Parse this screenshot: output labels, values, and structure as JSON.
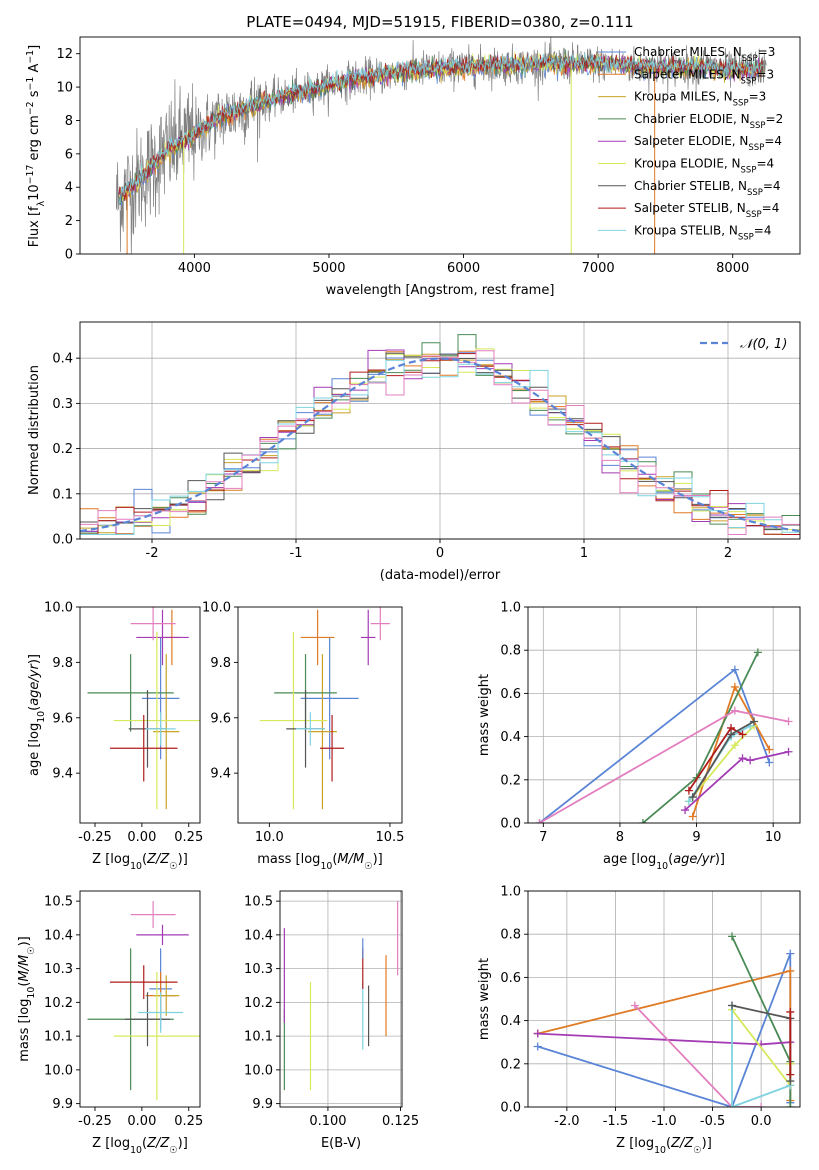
{
  "chart_data": [
    {
      "id": "spectrum",
      "type": "line",
      "title": "PLATE=0494, MJD=51915, FIBERID=0380, z=0.111",
      "xlabel": "wavelength [Angstrom, rest frame]",
      "ylabel": "Flux [f_λ 10^-17 erg cm^-2 s^-1 A^-1]",
      "xlim": [
        3150,
        8500
      ],
      "ylim": [
        0,
        13
      ],
      "xticks": [
        4000,
        5000,
        6000,
        7000,
        8000
      ],
      "yticks": [
        0,
        2,
        4,
        6,
        8,
        10,
        12
      ],
      "grid": false,
      "legend_position": "top-right",
      "continuum": [
        [
          3420,
          3.2
        ],
        [
          3600,
          4.5
        ],
        [
          3800,
          6.2
        ],
        [
          4000,
          7.2
        ],
        [
          4200,
          8.2
        ],
        [
          4400,
          8.8
        ],
        [
          4600,
          9.3
        ],
        [
          4800,
          9.7
        ],
        [
          5000,
          10.1
        ],
        [
          5200,
          10.5
        ],
        [
          5400,
          10.7
        ],
        [
          5600,
          11.0
        ],
        [
          5800,
          11.1
        ],
        [
          6000,
          11.2
        ],
        [
          6200,
          11.3
        ],
        [
          6400,
          11.3
        ],
        [
          6600,
          11.4
        ],
        [
          6800,
          11.4
        ],
        [
          7000,
          11.4
        ],
        [
          7200,
          11.3
        ],
        [
          7400,
          11.2
        ],
        [
          7600,
          11.2
        ],
        [
          7800,
          11.2
        ],
        [
          8000,
          11.0
        ],
        [
          8250,
          11.1
        ]
      ],
      "series": [
        {
          "name": "Chabrier MILES, N_SSP=3",
          "color": "#5a85d6"
        },
        {
          "name": "Salpeter MILES, N_SSP=3",
          "color": "#e07a24"
        },
        {
          "name": "Kroupa MILES, N_SSP=3",
          "color": "#c9a227"
        },
        {
          "name": "Chabrier ELODIE, N_SSP=2",
          "color": "#4a8a55"
        },
        {
          "name": "Salpeter ELODIE, N_SSP=4",
          "color": "#a33bb5"
        },
        {
          "name": "Kroupa ELODIE, N_SSP=4",
          "color": "#d7e85a"
        },
        {
          "name": "Chabrier STELIB, N_SSP=4",
          "color": "#555555"
        },
        {
          "name": "Salpeter STELIB, N_SSP=4",
          "color": "#b01c1c"
        },
        {
          "name": "Kroupa STELIB, N_SSP=4",
          "color": "#7fd3e0"
        }
      ]
    },
    {
      "id": "residuals",
      "type": "line",
      "xlabel": "(data-model)/error",
      "ylabel": "Normed distribution",
      "xlim": [
        -2.5,
        2.5
      ],
      "ylim": [
        0,
        0.48
      ],
      "xticks": [
        -2,
        -1,
        0,
        1,
        2
      ],
      "yticks": [
        0.0,
        0.1,
        0.2,
        0.3,
        0.4
      ],
      "grid": true,
      "legend": "N(0,1)",
      "legend_position": "top-right",
      "gaussian": {
        "mean": 0,
        "sigma": 1,
        "color": "#5a85d6"
      },
      "histogram_bins": 40
    },
    {
      "id": "age-vs-Z",
      "type": "scatter",
      "xlabel": "Z [log10(Z/Z☉)]",
      "ylabel": "age [log10(age/yr)]",
      "xlim": [
        -0.33,
        0.31
      ],
      "ylim": [
        9.22,
        10.0
      ],
      "xticks": [
        -0.25,
        0.0,
        0.25
      ],
      "yticks": [
        9.4,
        9.6,
        9.8,
        10.0
      ],
      "grid": false,
      "points": [
        {
          "c": "#5a85d6",
          "x": 0.1,
          "xerr": 0.1,
          "y": 9.67,
          "yerr": 0.22
        },
        {
          "c": "#e07a24",
          "x": 0.16,
          "xerr": 0.04,
          "y": 9.89,
          "yerr": 0.1
        },
        {
          "c": "#c9a227",
          "x": 0.13,
          "xerr": 0.07,
          "y": 9.55,
          "yerr": 0.28
        },
        {
          "c": "#4a8a55",
          "x": -0.06,
          "xerr": 0.23,
          "y": 9.69,
          "yerr": 0.14
        },
        {
          "c": "#a33bb5",
          "x": 0.11,
          "xerr": 0.14,
          "y": 9.89,
          "yerr": 0.1
        },
        {
          "c": "#d7e85a",
          "x": 0.08,
          "xerr": 0.23,
          "y": 9.59,
          "yerr": 0.32
        },
        {
          "c": "#555555",
          "x": 0.03,
          "xerr": 0.1,
          "y": 9.56,
          "yerr": 0.14
        },
        {
          "c": "#b01c1c",
          "x": 0.01,
          "xerr": 0.18,
          "y": 9.49,
          "yerr": 0.12
        },
        {
          "c": "#e27fbf",
          "x": 0.06,
          "xerr": 0.12,
          "y": 9.94,
          "yerr": 0.06
        },
        {
          "c": "#7fd3e0",
          "x": 0.1,
          "xerr": 0.08,
          "y": 9.56,
          "yerr": 0.06
        }
      ]
    },
    {
      "id": "age-vs-mass",
      "type": "scatter",
      "xlabel": "mass [log10(M/M☉)]",
      "ylabel": "",
      "xlim": [
        9.87,
        10.55
      ],
      "ylim": [
        9.22,
        10.0
      ],
      "xticks": [
        10.0,
        10.5
      ],
      "yticks": [
        9.4,
        9.6,
        9.8,
        10.0
      ],
      "grid": false,
      "points": [
        {
          "c": "#5a85d6",
          "x": 10.25,
          "xerr": 0.12,
          "y": 9.67,
          "yerr": 0.22
        },
        {
          "c": "#e07a24",
          "x": 10.2,
          "xerr": 0.07,
          "y": 9.89,
          "yerr": 0.1
        },
        {
          "c": "#c9a227",
          "x": 10.22,
          "xerr": 0.06,
          "y": 9.55,
          "yerr": 0.28
        },
        {
          "c": "#4a8a55",
          "x": 10.15,
          "xerr": 0.13,
          "y": 9.69,
          "yerr": 0.14
        },
        {
          "c": "#a33bb5",
          "x": 10.41,
          "xerr": 0.03,
          "y": 9.89,
          "yerr": 0.1
        },
        {
          "c": "#d7e85a",
          "x": 10.1,
          "xerr": 0.14,
          "y": 9.59,
          "yerr": 0.32
        },
        {
          "c": "#555555",
          "x": 10.15,
          "xerr": 0.08,
          "y": 9.56,
          "yerr": 0.14
        },
        {
          "c": "#b01c1c",
          "x": 10.26,
          "xerr": 0.05,
          "y": 9.49,
          "yerr": 0.12
        },
        {
          "c": "#e27fbf",
          "x": 10.46,
          "xerr": 0.04,
          "y": 9.94,
          "yerr": 0.06
        },
        {
          "c": "#7fd3e0",
          "x": 10.17,
          "xerr": 0.06,
          "y": 9.56,
          "yerr": 0.06
        }
      ]
    },
    {
      "id": "weight-vs-age",
      "type": "line",
      "xlabel": "age [log10(age/yr)]",
      "ylabel": "mass weight",
      "xlim": [
        6.8,
        10.35
      ],
      "ylim": [
        0,
        1.0
      ],
      "xticks": [
        7,
        8,
        9,
        10
      ],
      "yticks": [
        0.0,
        0.2,
        0.4,
        0.6,
        0.8,
        1.0
      ],
      "grid": true,
      "series": [
        {
          "c": "#5a85d6",
          "x": [
            6.95,
            9.5,
            9.95
          ],
          "y": [
            0.0,
            0.71,
            0.28
          ]
        },
        {
          "c": "#e07a24",
          "x": [
            8.95,
            9.5,
            9.95
          ],
          "y": [
            0.03,
            0.63,
            0.34
          ]
        },
        {
          "c": "#4a8a55",
          "x": [
            8.3,
            9.0,
            9.8
          ],
          "y": [
            0.0,
            0.21,
            0.79
          ]
        },
        {
          "c": "#a33bb5",
          "x": [
            8.85,
            9.6,
            9.7,
            10.2
          ],
          "y": [
            0.06,
            0.3,
            0.29,
            0.33
          ]
        },
        {
          "c": "#e27fbf",
          "x": [
            6.95,
            9.5,
            10.2
          ],
          "y": [
            0.0,
            0.52,
            0.47
          ]
        },
        {
          "c": "#d7e85a",
          "x": [
            8.9,
            9.5,
            9.75
          ],
          "y": [
            0.1,
            0.36,
            0.45
          ]
        },
        {
          "c": "#7fd3e0",
          "x": [
            8.9,
            9.45,
            9.7
          ],
          "y": [
            0.1,
            0.4,
            0.45
          ]
        },
        {
          "c": "#b01c1c",
          "x": [
            8.9,
            9.45,
            9.6
          ],
          "y": [
            0.15,
            0.44,
            0.41
          ]
        },
        {
          "c": "#555555",
          "x": [
            8.95,
            9.45,
            9.75
          ],
          "y": [
            0.12,
            0.41,
            0.47
          ]
        }
      ]
    },
    {
      "id": "mass-vs-Z",
      "type": "scatter",
      "xlabel": "Z [log10(Z/Z☉)]",
      "ylabel": "mass [log10(M/M☉)]",
      "xlim": [
        -0.33,
        0.31
      ],
      "ylim": [
        9.89,
        10.53
      ],
      "xticks": [
        -0.25,
        0.0,
        0.25
      ],
      "yticks": [
        9.9,
        10.0,
        10.1,
        10.2,
        10.3,
        10.4,
        10.5
      ],
      "grid": false,
      "points": [
        {
          "c": "#5a85d6",
          "x": 0.1,
          "xerr": 0.06,
          "y": 10.24,
          "yerr": 0.12
        },
        {
          "c": "#e07a24",
          "x": 0.1,
          "xerr": 0.08,
          "y": 10.22,
          "yerr": 0.07
        },
        {
          "c": "#c9a227",
          "x": 0.13,
          "xerr": 0.07,
          "y": 10.22,
          "yerr": 0.06
        },
        {
          "c": "#4a8a55",
          "x": -0.06,
          "xerr": 0.23,
          "y": 10.15,
          "yerr": 0.21
        },
        {
          "c": "#a33bb5",
          "x": 0.11,
          "xerr": 0.14,
          "y": 10.4,
          "yerr": 0.03
        },
        {
          "c": "#d7e85a",
          "x": 0.08,
          "xerr": 0.23,
          "y": 10.1,
          "yerr": 0.19
        },
        {
          "c": "#555555",
          "x": 0.03,
          "xerr": 0.12,
          "y": 10.15,
          "yerr": 0.08
        },
        {
          "c": "#b01c1c",
          "x": 0.01,
          "xerr": 0.18,
          "y": 10.26,
          "yerr": 0.05
        },
        {
          "c": "#e27fbf",
          "x": 0.06,
          "xerr": 0.12,
          "y": 10.46,
          "yerr": 0.04
        },
        {
          "c": "#7fd3e0",
          "x": 0.1,
          "xerr": 0.12,
          "y": 10.17,
          "yerr": 0.06
        }
      ]
    },
    {
      "id": "mass-vs-EBV",
      "type": "scatter",
      "xlabel": "E(B-V)",
      "ylabel": "",
      "xlim": [
        0.0835,
        0.1255
      ],
      "ylim": [
        9.89,
        10.53
      ],
      "xticks": [
        0.1,
        0.125
      ],
      "yticks": [
        9.9,
        10.0,
        10.1,
        10.2,
        10.3,
        10.4,
        10.5
      ],
      "grid": true,
      "points": [
        {
          "c": "#4a8a55",
          "x": 0.085,
          "y": 10.06,
          "yerr": 0.12
        },
        {
          "c": "#a33bb5",
          "x": 0.085,
          "y": 10.28,
          "yerr": 0.14
        },
        {
          "c": "#d7e85a",
          "x": 0.094,
          "y": 10.1,
          "yerr": 0.16
        },
        {
          "c": "#7fd3e0",
          "x": 0.112,
          "y": 10.16,
          "yerr": 0.1
        },
        {
          "c": "#b01c1c",
          "x": 0.112,
          "y": 10.3,
          "yerr": 0.06
        },
        {
          "c": "#5a85d6",
          "x": 0.112,
          "y": 10.36,
          "yerr": 0.03
        },
        {
          "c": "#555555",
          "x": 0.114,
          "y": 10.16,
          "yerr": 0.09
        },
        {
          "c": "#e07a24",
          "x": 0.12,
          "y": 10.22,
          "yerr": 0.12
        },
        {
          "c": "#e27fbf",
          "x": 0.124,
          "y": 10.39,
          "yerr": 0.11
        }
      ]
    },
    {
      "id": "weight-vs-Z",
      "type": "line",
      "xlabel": "Z [log10(Z/Z☉)]",
      "ylabel": "mass weight",
      "xlim": [
        -2.4,
        0.4
      ],
      "ylim": [
        0,
        1.0
      ],
      "xticks": [
        -2.0,
        -1.5,
        -1.0,
        -0.5,
        0.0
      ],
      "yticks": [
        0.0,
        0.2,
        0.4,
        0.6,
        0.8,
        1.0
      ],
      "grid": true,
      "series": [
        {
          "c": "#5a85d6",
          "x": [
            -2.3,
            -0.3,
            0.3,
            0.3
          ],
          "y": [
            0.28,
            0.0,
            0.71,
            0.02
          ]
        },
        {
          "c": "#e07a24",
          "x": [
            -2.3,
            0.3,
            0.3,
            0.3
          ],
          "y": [
            0.34,
            0.63,
            0.2,
            0.03
          ]
        },
        {
          "c": "#4a8a55",
          "x": [
            -0.3,
            0.3,
            0.3
          ],
          "y": [
            0.79,
            0.21,
            0.0
          ]
        },
        {
          "c": "#a33bb5",
          "x": [
            -2.3,
            0.0,
            0.3
          ],
          "y": [
            0.34,
            0.29,
            0.3
          ]
        },
        {
          "c": "#e27fbf",
          "x": [
            -1.3,
            -0.3,
            0.0
          ],
          "y": [
            0.47,
            0.0,
            0.0
          ]
        },
        {
          "c": "#d7e85a",
          "x": [
            -0.3,
            0.3,
            0.3
          ],
          "y": [
            0.45,
            0.1,
            0.2
          ]
        },
        {
          "c": "#7fd3e0",
          "x": [
            -0.3,
            -0.3,
            0.3
          ],
          "y": [
            0.47,
            0.0,
            0.1
          ]
        },
        {
          "c": "#555555",
          "x": [
            -0.3,
            0.3,
            0.3
          ],
          "y": [
            0.47,
            0.41,
            0.12
          ]
        },
        {
          "c": "#b01c1c",
          "x": [
            0.3,
            0.3
          ],
          "y": [
            0.44,
            0.15
          ]
        }
      ]
    }
  ]
}
